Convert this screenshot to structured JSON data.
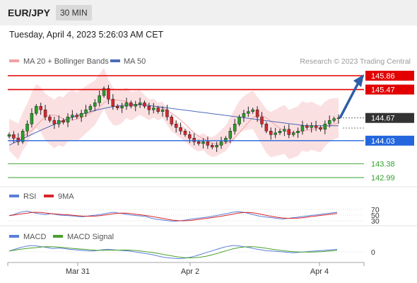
{
  "header": {
    "symbol": "EUR/JPY",
    "timeframe": "30 MIN"
  },
  "timestamp": "Tuesday, April 4, 2023 5:26:03 AM CET",
  "colors": {
    "up": "#27a125",
    "down": "#d7262b",
    "bands": "#fbe0e2",
    "ma20": "#f3a0a3",
    "ma50": "#4b6bb8",
    "resistance": "#e20000",
    "pivot": "#2366dd",
    "support": "#33a12c",
    "arrow": "#2d5ea8",
    "current": "#333333",
    "rsi": "#5b7fd8",
    "rsi_ma": "#d7262b",
    "macd": "#5b7fd8",
    "macd_signal": "#4aa02c"
  },
  "chart_data": [
    {
      "type": "candlestick",
      "title": "",
      "legend": [
        {
          "label": "MA 20 + Bollinger Bands",
          "color": "#f3a0a3"
        },
        {
          "label": "MA 50",
          "color": "#4b6bb8"
        }
      ],
      "legend_position": "top-left",
      "credit": "Research © 2023 Trading Central",
      "x_ticks": [
        "Mar 31",
        "Apr 2",
        "Apr 4"
      ],
      "grid": false,
      "levels": [
        {
          "value": 145.86,
          "label": "145.86",
          "kind": "resistance"
        },
        {
          "value": 145.47,
          "label": "145.47",
          "kind": "resistance"
        },
        {
          "value": 144.67,
          "label": "144.67",
          "kind": "current"
        },
        {
          "value": 144.03,
          "label": "144.03",
          "kind": "pivot"
        },
        {
          "value": 143.38,
          "label": "143.38",
          "kind": "support"
        },
        {
          "value": 142.99,
          "label": "142.99",
          "kind": "support"
        }
      ],
      "close_series": [
        144.2,
        144.1,
        144.0,
        144.3,
        144.5,
        144.8,
        145.0,
        144.9,
        144.7,
        144.6,
        144.5,
        144.6,
        144.55,
        144.7,
        144.75,
        144.7,
        144.8,
        144.9,
        145.0,
        145.1,
        145.3,
        145.5,
        145.2,
        145.0,
        144.95,
        145.0,
        145.1,
        145.0,
        145.05,
        145.1,
        145.0,
        144.9,
        144.95,
        144.85,
        144.9,
        144.7,
        144.5,
        144.4,
        144.3,
        144.2,
        144.1,
        144.0,
        143.95,
        144.0,
        143.9,
        143.85,
        143.9,
        144.0,
        144.1,
        144.3,
        144.5,
        144.7,
        144.8,
        144.85,
        144.9,
        144.7,
        144.5,
        144.3,
        144.2,
        144.25,
        144.3,
        144.35,
        144.2,
        144.25,
        144.3,
        144.45,
        144.4,
        144.45,
        144.4,
        144.35,
        144.5,
        144.6,
        144.65,
        144.67
      ],
      "bollinger": {
        "center": 144.55,
        "width_high": 145.3,
        "width_low": 143.75
      },
      "ma50": {
        "start": 143.9,
        "peak": 145.05,
        "end": 144.45
      },
      "forecast_arrow": {
        "from": 144.67,
        "to": 145.86
      }
    },
    {
      "type": "line",
      "name": "RSI",
      "series": [
        {
          "name": "RSI",
          "color": "#5b7fd8"
        },
        {
          "name": "9MA",
          "color": "#d7262b"
        }
      ],
      "y_ticks": [
        70,
        50,
        30
      ],
      "rsi_values": [
        48,
        52,
        58,
        62,
        64,
        60,
        56,
        54,
        52,
        55,
        53,
        50,
        49,
        48,
        47,
        45,
        44,
        46,
        48,
        50,
        52,
        55,
        58,
        60,
        57,
        55,
        52,
        50,
        48,
        47,
        45,
        40,
        36,
        34,
        32,
        30,
        28,
        29,
        31,
        33,
        36,
        38,
        40,
        42,
        44,
        47,
        50,
        53,
        56,
        60,
        62,
        61,
        58,
        54,
        50,
        46,
        44,
        42,
        40,
        38,
        36,
        38,
        40,
        42,
        44,
        46,
        48,
        50,
        52,
        54,
        56,
        58,
        60
      ]
    },
    {
      "type": "line",
      "name": "MACD",
      "series": [
        {
          "name": "MACD",
          "color": "#5b7fd8"
        },
        {
          "name": "MACD Signal",
          "color": "#4aa02c"
        }
      ],
      "y_ticks": [
        0
      ],
      "macd_values": [
        0.02,
        0.06,
        0.1,
        0.13,
        0.15,
        0.14,
        0.12,
        0.1,
        0.08,
        0.09,
        0.08,
        0.06,
        0.05,
        0.04,
        0.03,
        0.02,
        0.03,
        0.05,
        0.06,
        0.05,
        0.04,
        0.03,
        0.02,
        0.0,
        -0.02,
        -0.04,
        -0.06,
        -0.09,
        -0.12,
        -0.14,
        -0.15,
        -0.16,
        -0.15,
        -0.13,
        -0.1,
        -0.06,
        -0.02,
        0.02,
        0.06,
        0.1,
        0.13,
        0.15,
        0.14,
        0.12,
        0.1,
        0.07,
        0.05,
        0.03,
        0.02,
        0.01,
        0.0,
        -0.01,
        -0.02,
        -0.01,
        0.0,
        0.01,
        0.02,
        0.03,
        0.04,
        0.05,
        0.06
      ]
    }
  ]
}
